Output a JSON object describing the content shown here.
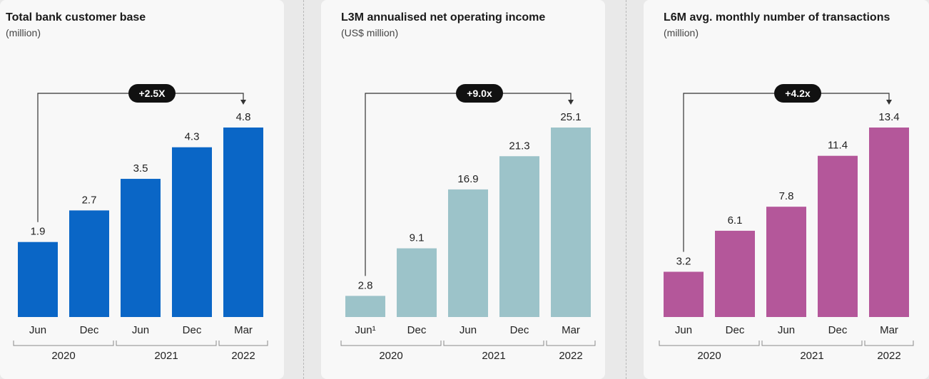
{
  "colors": {
    "panel_bg": "#f8f8f8"
  },
  "chart_data": [
    {
      "type": "bar",
      "title": "Total bank customer base",
      "subtitle": "(million)",
      "categories": [
        "Jun",
        "Dec",
        "Jun",
        "Dec",
        "Mar"
      ],
      "values": [
        1.9,
        2.7,
        3.5,
        4.3,
        4.8
      ],
      "value_labels": [
        "1.9",
        "2.7",
        "3.5",
        "4.3",
        "4.8"
      ],
      "groups": [
        {
          "label": "2020",
          "from": 0,
          "to": 1
        },
        {
          "label": "2021",
          "from": 2,
          "to": 3
        },
        {
          "label": "2022",
          "from": 4,
          "to": 4
        }
      ],
      "growth_label": "+2.5X",
      "color": "#0a66c6",
      "ylim": [
        0,
        4.8
      ]
    },
    {
      "type": "bar",
      "title": "L3M annualised net operating income",
      "subtitle": "(US$ million)",
      "categories": [
        "Jun¹",
        "Dec",
        "Jun",
        "Dec",
        "Mar"
      ],
      "values": [
        2.8,
        9.1,
        16.9,
        21.3,
        25.1
      ],
      "value_labels": [
        "2.8",
        "9.1",
        "16.9",
        "21.3",
        "25.1"
      ],
      "groups": [
        {
          "label": "2020",
          "from": 0,
          "to": 1
        },
        {
          "label": "2021",
          "from": 2,
          "to": 3
        },
        {
          "label": "2022",
          "from": 4,
          "to": 4
        }
      ],
      "growth_label": "+9.0x",
      "color": "#9cc3c9",
      "ylim": [
        0,
        25.1
      ]
    },
    {
      "type": "bar",
      "title": "L6M avg. monthly number of transactions",
      "subtitle": "(million)",
      "categories": [
        "Jun",
        "Dec",
        "Jun",
        "Dec",
        "Mar"
      ],
      "values": [
        3.2,
        6.1,
        7.8,
        11.4,
        13.4
      ],
      "value_labels": [
        "3.2",
        "6.1",
        "7.8",
        "11.4",
        "13.4"
      ],
      "groups": [
        {
          "label": "2020",
          "from": 0,
          "to": 1
        },
        {
          "label": "2021",
          "from": 2,
          "to": 3
        },
        {
          "label": "2022",
          "from": 4,
          "to": 4
        }
      ],
      "growth_label": "+4.2x",
      "color": "#b4579a",
      "ylim": [
        0,
        13.4
      ]
    }
  ]
}
